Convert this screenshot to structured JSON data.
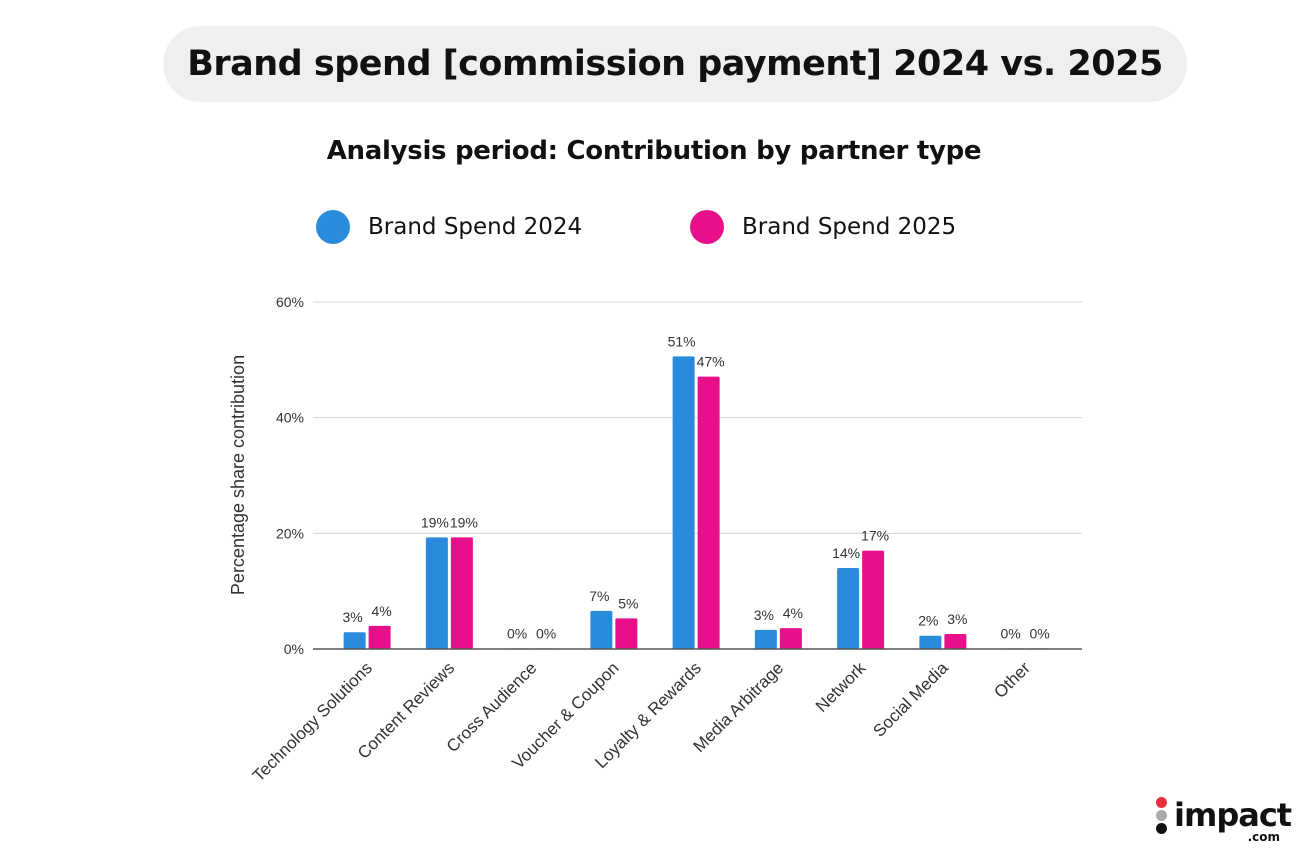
{
  "header": {
    "title": "Brand spend [commission payment] 2024 vs. 2025"
  },
  "logo": {
    "brand": "impact",
    "domain": ".com"
  },
  "chart_data": {
    "type": "bar",
    "title": "Analysis period: Contribution by partner type",
    "ylabel": "Percentage share contribution",
    "xlabel": "",
    "ylim": [
      0,
      60
    ],
    "yticks": [
      "0%",
      "20%",
      "40%",
      "60%"
    ],
    "ytick_values": [
      0,
      20,
      40,
      60
    ],
    "grid": true,
    "legend_position": "top",
    "categories": [
      "Technology Solutions",
      "Content Reviews",
      "Cross Audience",
      "Voucher & Coupon",
      "Loyalty & Rewards",
      "Media Arbitrage",
      "Network",
      "Social Media",
      "Other"
    ],
    "series": [
      {
        "name": "Brand Spend 2024",
        "color": "#2a8bdc",
        "values": [
          2.9,
          19.3,
          0.1,
          6.6,
          50.6,
          3.3,
          14.0,
          2.3,
          0.1
        ],
        "labels": [
          "3%",
          "19%",
          "0%",
          "7%",
          "51%",
          "3%",
          "14%",
          "2%",
          "0%"
        ]
      },
      {
        "name": "Brand Spend 2025",
        "color": "#e8108a",
        "values": [
          4.0,
          19.3,
          0.1,
          5.3,
          47.1,
          3.6,
          17.0,
          2.6,
          0.1
        ],
        "labels": [
          "4%",
          "19%",
          "0%",
          "5%",
          "47%",
          "4%",
          "17%",
          "3%",
          "0%"
        ]
      }
    ]
  }
}
